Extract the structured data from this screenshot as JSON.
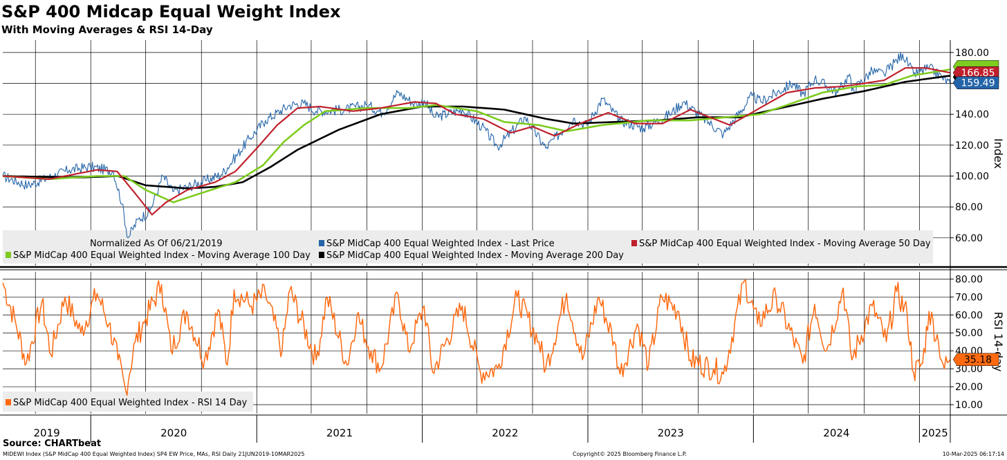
{
  "header": {
    "title": "S&P 400 Midcap Equal Weight Index",
    "subtitle": "With Moving Averages & RSI 14-Day"
  },
  "footer": {
    "source": "Source: CHARTbeat",
    "description": "MIDEWI Index (S&P MidCap 400 Equal Weighted Index) SP4 EW Price, MAs, RSI  Daily 21JUN2019-10MAR2025",
    "copyright": "Copyright© 2025 Bloomberg Finance L.P.",
    "timestamp": "10-Mar-2025 06:17:14"
  },
  "colors": {
    "last_price": "#2464a8",
    "ma50": "#c0202c",
    "ma100": "#7dcc1f",
    "ma200": "#000000",
    "rsi": "#ff6a10",
    "grid": "#000000",
    "legend_bg": "#ececec"
  },
  "chart_data": [
    {
      "type": "line",
      "panel": "price",
      "ylabel": "Index",
      "ylim": [
        42,
        188
      ],
      "yticks": [
        "180.00",
        "160.00",
        "140.00",
        "120.00",
        "100.00",
        "80.00",
        "60.00"
      ],
      "ytick_values": [
        180,
        160,
        140,
        120,
        100,
        80,
        60
      ],
      "x_range": [
        "2019-06-21",
        "2025-03-10"
      ],
      "x_year_labels": [
        "2019",
        "2020",
        "2021",
        "2022",
        "2023",
        "2024",
        "2025"
      ],
      "grid": true,
      "note": "Normalized As Of 06/21/2019",
      "legend": [
        "S&P MidCap 400 Equal Weighted Index - Last Price",
        "S&P MidCap 400 Equal Weighted Index - Moving Average 50 Day",
        "S&P MidCap 400 Equal Weighted Index - Moving Average 100 Day",
        "S&P MidCap 400 Equal Weighted Index - Moving Average 200 Day"
      ],
      "series": [
        {
          "name": "S&P MidCap 400 Equal Weighted Index - Last Price",
          "color_key": "last_price",
          "end_label": "159.49",
          "points": [
            [
              "2019-06-21",
              100
            ],
            [
              "2019-08-15",
              94
            ],
            [
              "2019-10-01",
              99
            ],
            [
              "2019-11-15",
              104
            ],
            [
              "2019-12-31",
              106
            ],
            [
              "2020-02-20",
              103
            ],
            [
              "2020-03-10",
              82
            ],
            [
              "2020-03-23",
              60
            ],
            [
              "2020-04-15",
              72
            ],
            [
              "2020-05-10",
              77
            ],
            [
              "2020-06-08",
              100
            ],
            [
              "2020-06-30",
              90
            ],
            [
              "2020-08-01",
              93
            ],
            [
              "2020-09-10",
              97
            ],
            [
              "2020-10-15",
              101
            ],
            [
              "2020-11-09",
              110
            ],
            [
              "2020-12-15",
              124
            ],
            [
              "2021-01-20",
              136
            ],
            [
              "2021-03-15",
              146
            ],
            [
              "2021-04-15",
              147
            ],
            [
              "2021-05-12",
              142
            ],
            [
              "2021-07-15",
              143
            ],
            [
              "2021-09-01",
              146
            ],
            [
              "2021-10-05",
              141
            ],
            [
              "2021-11-08",
              154
            ],
            [
              "2021-12-20",
              146
            ],
            [
              "2022-01-05",
              149
            ],
            [
              "2022-01-28",
              138
            ],
            [
              "2022-03-30",
              143
            ],
            [
              "2022-05-12",
              132
            ],
            [
              "2022-06-16",
              119
            ],
            [
              "2022-08-16",
              138
            ],
            [
              "2022-09-30",
              118
            ],
            [
              "2022-11-30",
              137
            ],
            [
              "2022-12-30",
              133
            ],
            [
              "2023-02-02",
              150
            ],
            [
              "2023-03-13",
              136
            ],
            [
              "2023-05-04",
              131
            ],
            [
              "2023-06-30",
              140
            ],
            [
              "2023-07-31",
              148
            ],
            [
              "2023-10-27",
              127
            ],
            [
              "2023-12-29",
              152
            ],
            [
              "2024-01-17",
              148
            ],
            [
              "2024-03-28",
              160
            ],
            [
              "2024-04-19",
              153
            ],
            [
              "2024-05-15",
              163
            ],
            [
              "2024-07-05",
              154
            ],
            [
              "2024-07-31",
              166
            ],
            [
              "2024-08-05",
              155
            ],
            [
              "2024-09-19",
              168
            ],
            [
              "2024-10-15",
              166
            ],
            [
              "2024-11-25",
              179
            ],
            [
              "2024-12-19",
              166
            ],
            [
              "2025-01-22",
              170
            ],
            [
              "2025-02-20",
              164
            ],
            [
              "2025-03-10",
              159.49
            ]
          ]
        },
        {
          "name": "S&P MidCap 400 Equal Weighted Index - Moving Average 50 Day",
          "color_key": "ma50",
          "end_label": "166.85",
          "points": [
            [
              "2019-06-21",
              100
            ],
            [
              "2019-10-01",
              98
            ],
            [
              "2020-01-15",
              104
            ],
            [
              "2020-02-28",
              103
            ],
            [
              "2020-04-10",
              88
            ],
            [
              "2020-05-15",
              75
            ],
            [
              "2020-06-15",
              83
            ],
            [
              "2020-08-01",
              91
            ],
            [
              "2020-10-01",
              96
            ],
            [
              "2020-11-15",
              103
            ],
            [
              "2021-01-01",
              118
            ],
            [
              "2021-02-15",
              133
            ],
            [
              "2021-04-01",
              144
            ],
            [
              "2021-05-20",
              145
            ],
            [
              "2021-08-01",
              142
            ],
            [
              "2021-10-01",
              144
            ],
            [
              "2021-12-15",
              148
            ],
            [
              "2022-01-31",
              147
            ],
            [
              "2022-03-15",
              140
            ],
            [
              "2022-05-15",
              137
            ],
            [
              "2022-07-15",
              128
            ],
            [
              "2022-09-01",
              132
            ],
            [
              "2022-10-20",
              126
            ],
            [
              "2022-12-15",
              134
            ],
            [
              "2023-02-15",
              141
            ],
            [
              "2023-04-15",
              134
            ],
            [
              "2023-06-15",
              134
            ],
            [
              "2023-08-15",
              143
            ],
            [
              "2023-11-10",
              133
            ],
            [
              "2024-01-15",
              144
            ],
            [
              "2024-03-15",
              154
            ],
            [
              "2024-05-15",
              157
            ],
            [
              "2024-07-15",
              158
            ],
            [
              "2024-09-01",
              160
            ],
            [
              "2024-10-15",
              162
            ],
            [
              "2024-12-01",
              170
            ],
            [
              "2025-01-15",
              170
            ],
            [
              "2025-03-10",
              166.85
            ]
          ]
        },
        {
          "name": "S&P MidCap 400 Equal Weighted Index - Moving Average 100 Day",
          "color_key": "ma100",
          "points": [
            [
              "2019-06-21",
              100
            ],
            [
              "2019-10-01",
              98
            ],
            [
              "2020-01-15",
              100
            ],
            [
              "2020-03-15",
              100
            ],
            [
              "2020-05-01",
              91
            ],
            [
              "2020-07-01",
              83
            ],
            [
              "2020-09-01",
              89
            ],
            [
              "2020-11-15",
              96
            ],
            [
              "2021-01-15",
              107
            ],
            [
              "2021-03-01",
              122
            ],
            [
              "2021-04-15",
              133
            ],
            [
              "2021-06-01",
              142
            ],
            [
              "2021-09-01",
              144
            ],
            [
              "2021-12-01",
              144
            ],
            [
              "2022-02-01",
              146
            ],
            [
              "2022-05-01",
              142
            ],
            [
              "2022-07-01",
              135
            ],
            [
              "2022-09-15",
              133
            ],
            [
              "2022-11-15",
              129
            ],
            [
              "2023-02-01",
              133
            ],
            [
              "2023-05-15",
              136
            ],
            [
              "2023-08-15",
              136
            ],
            [
              "2023-11-01",
              138
            ],
            [
              "2024-01-15",
              140
            ],
            [
              "2024-03-15",
              146
            ],
            [
              "2024-06-01",
              154
            ],
            [
              "2024-08-15",
              158
            ],
            [
              "2024-10-15",
              159
            ],
            [
              "2024-12-15",
              165
            ],
            [
              "2025-03-10",
              169
            ]
          ]
        },
        {
          "name": "S&P MidCap 400 Equal Weighted Index - Moving Average 200 Day",
          "color_key": "ma200",
          "points": [
            [
              "2019-06-21",
              100
            ],
            [
              "2019-12-01",
              99
            ],
            [
              "2020-03-01",
              100
            ],
            [
              "2020-05-01",
              94
            ],
            [
              "2020-08-01",
              92
            ],
            [
              "2020-10-01",
              93
            ],
            [
              "2020-12-01",
              96
            ],
            [
              "2021-02-01",
              106
            ],
            [
              "2021-04-01",
              117
            ],
            [
              "2021-07-01",
              130
            ],
            [
              "2021-10-01",
              140
            ],
            [
              "2022-01-01",
              145
            ],
            [
              "2022-04-01",
              145
            ],
            [
              "2022-07-01",
              143
            ],
            [
              "2022-10-01",
              137
            ],
            [
              "2022-12-01",
              134
            ],
            [
              "2023-03-01",
              135
            ],
            [
              "2023-06-01",
              136
            ],
            [
              "2023-09-01",
              138
            ],
            [
              "2023-12-01",
              138
            ],
            [
              "2024-03-01",
              144
            ],
            [
              "2024-06-01",
              150
            ],
            [
              "2024-09-01",
              155
            ],
            [
              "2024-12-01",
              161
            ],
            [
              "2025-03-10",
              165
            ]
          ]
        }
      ]
    },
    {
      "type": "line",
      "panel": "rsi",
      "ylabel": "RSI 14-day",
      "ylim": [
        5,
        84
      ],
      "yticks": [
        "80.00",
        "70.00",
        "60.00",
        "50.00",
        "40.00",
        "30.00",
        "20.00",
        "10.00"
      ],
      "ytick_values": [
        80,
        70,
        60,
        50,
        40,
        30,
        20,
        10
      ],
      "x_range": [
        "2019-06-21",
        "2025-03-10"
      ],
      "grid": true,
      "legend": [
        "S&P MidCap 400 Equal Weighted Index - RSI 14 Day"
      ],
      "series": [
        {
          "name": "S&P MidCap 400 Equal Weighted Index - RSI 14 Day",
          "color_key": "rsi",
          "end_label": "35.18",
          "points": [
            [
              "2019-06-21",
              78
            ],
            [
              "2019-07-20",
              55
            ],
            [
              "2019-08-12",
              33
            ],
            [
              "2019-09-15",
              67
            ],
            [
              "2019-10-05",
              38
            ],
            [
              "2019-11-05",
              70
            ],
            [
              "2019-12-10",
              50
            ],
            [
              "2020-01-15",
              72
            ],
            [
              "2020-02-10",
              55
            ],
            [
              "2020-03-01",
              35
            ],
            [
              "2020-03-18",
              18
            ],
            [
              "2020-04-08",
              45
            ],
            [
              "2020-05-01",
              58
            ],
            [
              "2020-06-05",
              77
            ],
            [
              "2020-06-26",
              40
            ],
            [
              "2020-07-30",
              62
            ],
            [
              "2020-09-08",
              35
            ],
            [
              "2020-10-08",
              63
            ],
            [
              "2020-10-28",
              32
            ],
            [
              "2020-11-12",
              74
            ],
            [
              "2020-12-20",
              65
            ],
            [
              "2021-01-20",
              72
            ],
            [
              "2021-02-26",
              40
            ],
            [
              "2021-03-15",
              74
            ],
            [
              "2021-05-12",
              35
            ],
            [
              "2021-06-05",
              70
            ],
            [
              "2021-07-19",
              32
            ],
            [
              "2021-08-10",
              60
            ],
            [
              "2021-09-10",
              40
            ],
            [
              "2021-10-01",
              30
            ],
            [
              "2021-11-08",
              72
            ],
            [
              "2021-12-01",
              40
            ],
            [
              "2022-01-05",
              65
            ],
            [
              "2022-01-24",
              28
            ],
            [
              "2022-03-30",
              65
            ],
            [
              "2022-05-09",
              28
            ],
            [
              "2022-06-16",
              30
            ],
            [
              "2022-07-29",
              70
            ],
            [
              "2022-09-15",
              45
            ],
            [
              "2022-09-30",
              30
            ],
            [
              "2022-11-15",
              72
            ],
            [
              "2022-12-20",
              35
            ],
            [
              "2023-01-25",
              70
            ],
            [
              "2023-02-28",
              45
            ],
            [
              "2023-03-13",
              27
            ],
            [
              "2023-04-20",
              55
            ],
            [
              "2023-05-15",
              32
            ],
            [
              "2023-06-13",
              70
            ],
            [
              "2023-07-20",
              62
            ],
            [
              "2023-08-15",
              35
            ],
            [
              "2023-10-05",
              30
            ],
            [
              "2023-10-27",
              27
            ],
            [
              "2023-12-12",
              79
            ],
            [
              "2024-01-10",
              55
            ],
            [
              "2024-02-20",
              70
            ],
            [
              "2024-04-19",
              33
            ],
            [
              "2024-05-15",
              66
            ],
            [
              "2024-06-10",
              40
            ],
            [
              "2024-07-17",
              75
            ],
            [
              "2024-08-05",
              35
            ],
            [
              "2024-09-19",
              65
            ],
            [
              "2024-10-20",
              45
            ],
            [
              "2024-11-12",
              73
            ],
            [
              "2024-12-05",
              60
            ],
            [
              "2024-12-19",
              28
            ],
            [
              "2025-01-08",
              33
            ],
            [
              "2025-01-22",
              62
            ],
            [
              "2025-02-12",
              45
            ],
            [
              "2025-02-25",
              30
            ],
            [
              "2025-03-10",
              35.18
            ]
          ]
        }
      ]
    }
  ]
}
